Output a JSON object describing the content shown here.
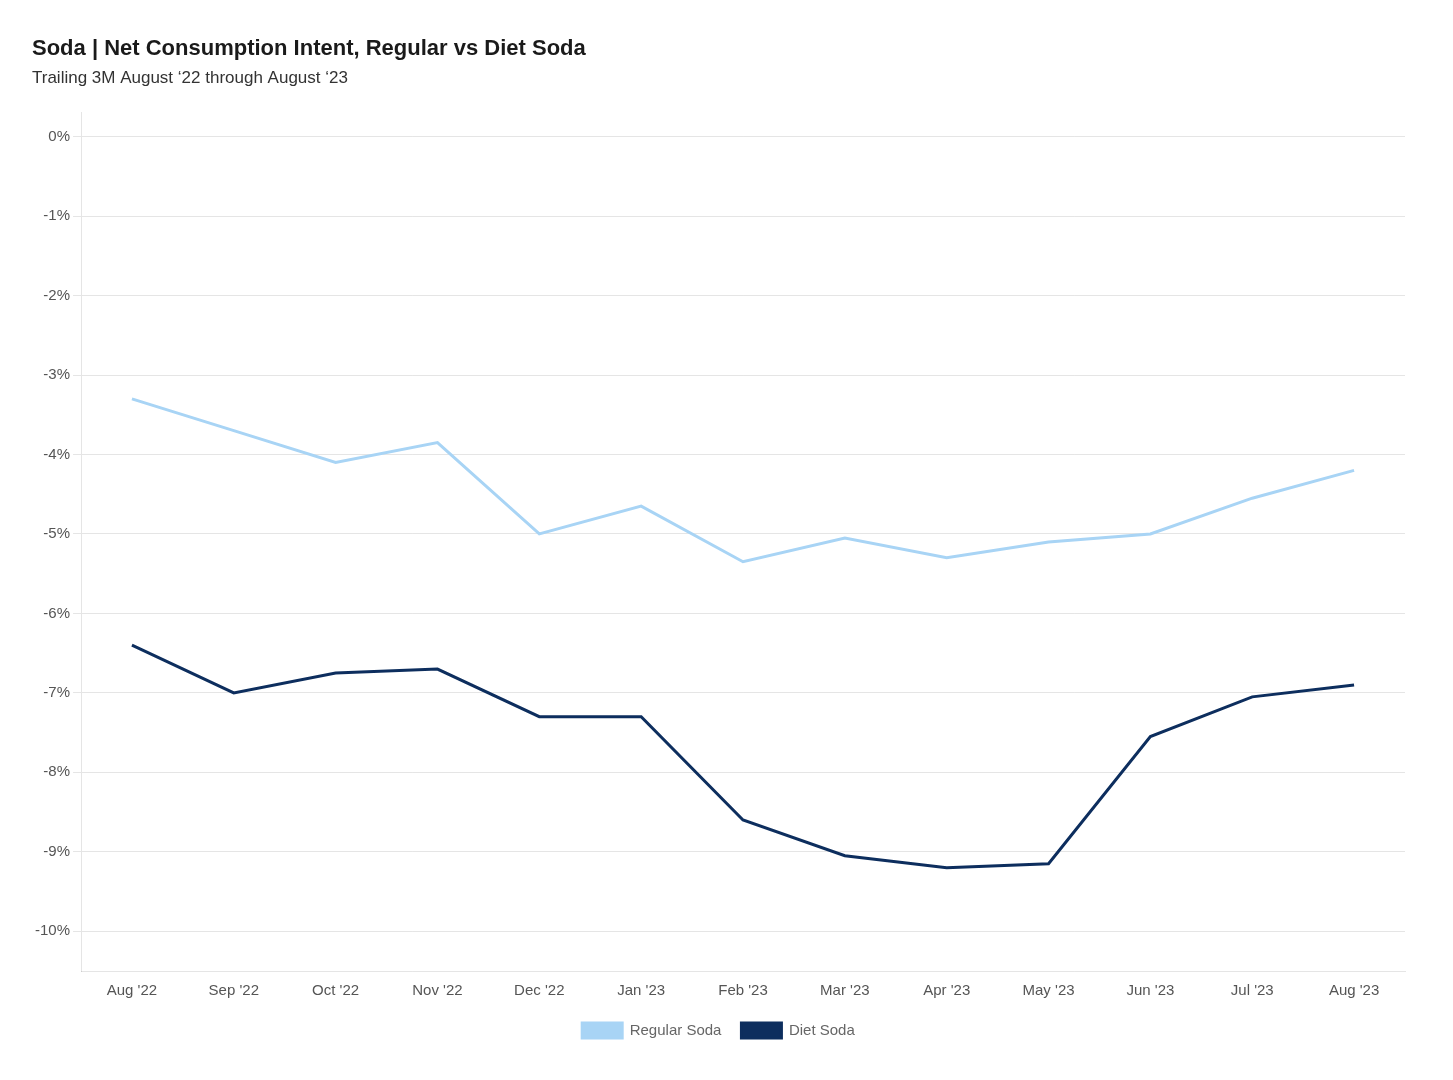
{
  "chart_data": {
    "type": "line",
    "title": "Soda | Net Consumption Intent, Regular vs Diet Soda",
    "subtitle": "Trailing 3M August ‘22 through August ‘23",
    "categories": [
      "Aug '22",
      "Sep '22",
      "Oct '22",
      "Nov '22",
      "Dec '22",
      "Jan '23",
      "Feb '23",
      "Mar '23",
      "Apr '23",
      "May '23",
      "Jun '23",
      "Jul '23",
      "Aug '23"
    ],
    "series": [
      {
        "name": "Regular Soda",
        "color": "#a8d4f5",
        "values": [
          -3.3,
          -3.7,
          -4.1,
          -3.85,
          -5.0,
          -4.65,
          -5.35,
          -5.05,
          -5.3,
          -5.1,
          -5.0,
          -4.55,
          -4.2
        ]
      },
      {
        "name": "Diet Soda",
        "color": "#0d2e5e",
        "values": [
          -6.4,
          -7.0,
          -6.75,
          -6.7,
          -7.3,
          -7.3,
          -8.6,
          -9.05,
          -9.2,
          -9.15,
          -7.55,
          -7.05,
          -6.9
        ]
      }
    ],
    "ylim": [
      -10.5,
      0.3
    ],
    "yticks": [
      {
        "value": 0,
        "label": "0%"
      },
      {
        "value": -1,
        "label": "-1%"
      },
      {
        "value": -2,
        "label": "-2%"
      },
      {
        "value": -3,
        "label": "-3%"
      },
      {
        "value": -4,
        "label": "-4%"
      },
      {
        "value": -5,
        "label": "-5%"
      },
      {
        "value": -6,
        "label": "-6%"
      },
      {
        "value": -7,
        "label": "-7%"
      },
      {
        "value": -8,
        "label": "-8%"
      },
      {
        "value": -9,
        "label": "-9%"
      },
      {
        "value": -10,
        "label": "-10%"
      }
    ],
    "grid": true,
    "legend": "bottom"
  }
}
